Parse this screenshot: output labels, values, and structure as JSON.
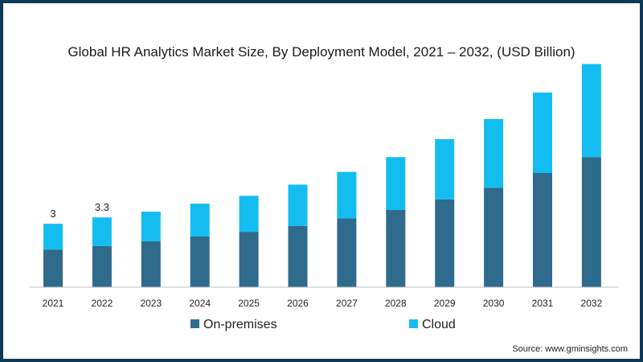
{
  "chart_data": {
    "type": "bar",
    "stacked": true,
    "title": "Global HR Analytics Market Size, By Deployment Model, 2021 – 2032, (USD Billion)",
    "xlabel": "",
    "ylabel": "",
    "categories": [
      "2021",
      "2022",
      "2023",
      "2024",
      "2025",
      "2026",
      "2027",
      "2028",
      "2029",
      "2030",
      "2031",
      "2032"
    ],
    "series": [
      {
        "name": "On-premises",
        "color": "#2e6b8c",
        "values": [
          1.78,
          1.95,
          2.17,
          2.4,
          2.62,
          2.9,
          3.25,
          3.65,
          4.15,
          4.7,
          5.4,
          6.15
        ]
      },
      {
        "name": "Cloud",
        "color": "#14bdf0",
        "values": [
          1.22,
          1.35,
          1.4,
          1.55,
          1.7,
          1.95,
          2.2,
          2.5,
          2.85,
          3.25,
          3.8,
          4.4
        ]
      }
    ],
    "data_labels": [
      "3",
      "3.3",
      "",
      "",
      "",
      "",
      "",
      "",
      "",
      "",
      "",
      ""
    ],
    "ylim": [
      0,
      10.8
    ],
    "grid": false,
    "legend_position": "bottom"
  },
  "source": "Source: www.gminsights.com"
}
